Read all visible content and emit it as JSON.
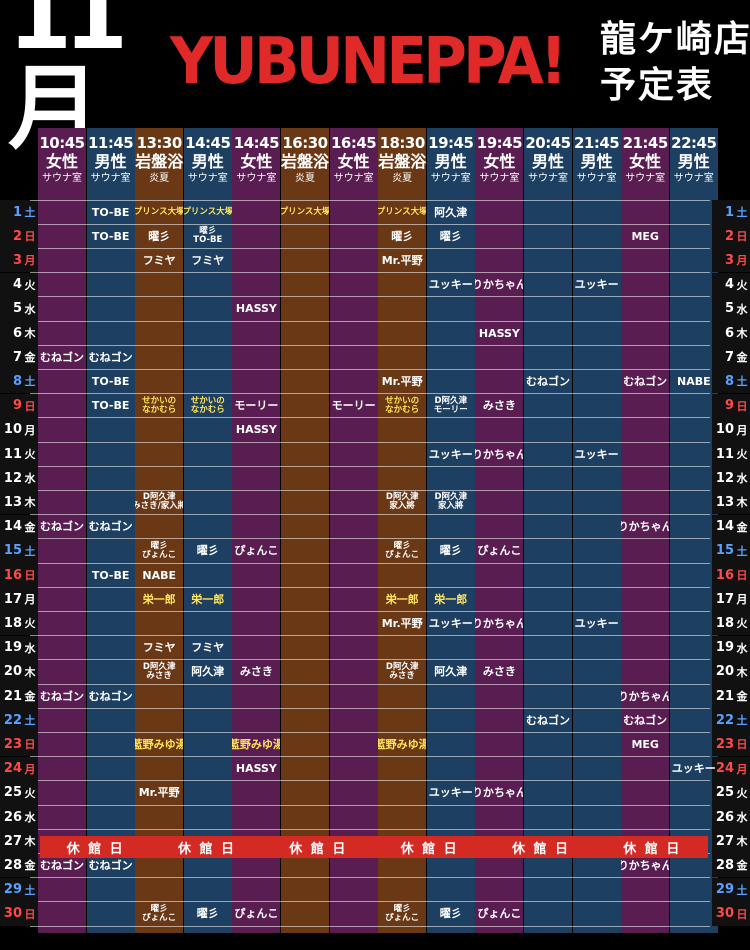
{
  "header": {
    "month": "11月",
    "title": "YUBUNEPPA!",
    "store": "龍ケ崎店",
    "subtitle": "予定表"
  },
  "colors": {
    "bg": "#000000",
    "title_red": "#e02a2a",
    "purple": "#5a1d52",
    "blue": "#1d3f61",
    "brown": "#6b3815",
    "highlight_yellow": "#ffe45c",
    "sat": "#5aa0ff",
    "sun": "#ff4a4a",
    "closed_bar": "#d42a24"
  },
  "columns": [
    {
      "time": "10:45",
      "name": "女性",
      "sub": "サウナ室",
      "color": "purple"
    },
    {
      "time": "11:45",
      "name": "男性",
      "sub": "サウナ室",
      "color": "blue"
    },
    {
      "time": "13:30",
      "name": "岩盤浴",
      "sub": "炎夏",
      "color": "brown"
    },
    {
      "time": "14:45",
      "name": "男性",
      "sub": "サウナ室",
      "color": "blue"
    },
    {
      "time": "14:45",
      "name": "女性",
      "sub": "サウナ室",
      "color": "purple"
    },
    {
      "time": "16:30",
      "name": "岩盤浴",
      "sub": "炎夏",
      "color": "brown"
    },
    {
      "time": "16:45",
      "name": "女性",
      "sub": "サウナ室",
      "color": "purple"
    },
    {
      "time": "18:30",
      "name": "岩盤浴",
      "sub": "炎夏",
      "color": "brown"
    },
    {
      "time": "19:45",
      "name": "男性",
      "sub": "サウナ室",
      "color": "blue"
    },
    {
      "time": "19:45",
      "name": "女性",
      "sub": "サウナ室",
      "color": "purple"
    },
    {
      "time": "20:45",
      "name": "男性",
      "sub": "サウナ室",
      "color": "blue"
    },
    {
      "time": "21:45",
      "name": "男性",
      "sub": "サウナ室",
      "color": "blue"
    },
    {
      "time": "21:45",
      "name": "女性",
      "sub": "サウナ室",
      "color": "purple"
    },
    {
      "time": "22:45",
      "name": "男性",
      "sub": "サウナ室",
      "color": "blue"
    }
  ],
  "days": [
    {
      "d": "1",
      "w": "土",
      "t": "sat",
      "cells": {
        "1": "TO-BE",
        "2": "プリンス大塚",
        "3": "プリンス大塚",
        "5": "プリンス大塚",
        "7": "プリンス大塚",
        "8": "阿久津"
      }
    },
    {
      "d": "2",
      "w": "日",
      "t": "sun",
      "cells": {
        "1": "TO-BE",
        "2": "曜彡",
        "3": "曜彡\nTO-BE",
        "7": "曜彡",
        "8": "曜彡",
        "12": "MEG"
      }
    },
    {
      "d": "3",
      "w": "月",
      "t": "sun",
      "cells": {
        "2": "フミヤ",
        "3": "フミヤ",
        "7": "Mr.平野"
      }
    },
    {
      "d": "4",
      "w": "火",
      "t": "",
      "cells": {
        "8": "ユッキー",
        "9": "りかちゃん",
        "11": "ユッキー"
      }
    },
    {
      "d": "5",
      "w": "水",
      "t": "",
      "cells": {
        "4": "HASSY"
      }
    },
    {
      "d": "6",
      "w": "木",
      "t": "",
      "cells": {
        "9": "HASSY"
      }
    },
    {
      "d": "7",
      "w": "金",
      "t": "",
      "cells": {
        "0": "むねゴン",
        "1": "むねゴン"
      }
    },
    {
      "d": "8",
      "w": "土",
      "t": "sat",
      "cells": {
        "1": "TO-BE",
        "7": "Mr.平野",
        "10": "むねゴン",
        "12": "むねゴン",
        "13": "NABE"
      }
    },
    {
      "d": "9",
      "w": "日",
      "t": "sun",
      "cells": {
        "1": "TO-BE",
        "2": "せかいの\nなかむら",
        "3": "せかいの\nなかむら",
        "4": "モーリー",
        "6": "モーリー",
        "7": "せかいの\nなかむら",
        "8": "D阿久津\nモーリー",
        "9": "みさき"
      }
    },
    {
      "d": "10",
      "w": "月",
      "t": "",
      "cells": {
        "4": "HASSY"
      }
    },
    {
      "d": "11",
      "w": "火",
      "t": "",
      "cells": {
        "8": "ユッキー",
        "9": "りかちゃん",
        "11": "ユッキー"
      }
    },
    {
      "d": "12",
      "w": "水",
      "t": "",
      "cells": {}
    },
    {
      "d": "13",
      "w": "木",
      "t": "",
      "cells": {
        "2": "D阿久津\nみさき/家入將",
        "7": "D阿久津\n家入將",
        "8": "D阿久津\n家入將"
      }
    },
    {
      "d": "14",
      "w": "金",
      "t": "",
      "cells": {
        "0": "むねゴン",
        "1": "むねゴン",
        "12": "りかちゃん"
      }
    },
    {
      "d": "15",
      "w": "土",
      "t": "sat",
      "cells": {
        "2": "曜彡\nぴょんこ",
        "3": "曜彡",
        "4": "ぴょんこ",
        "7": "曜彡\nぴょんこ",
        "8": "曜彡",
        "9": "ぴょんこ"
      }
    },
    {
      "d": "16",
      "w": "日",
      "t": "sun",
      "cells": {
        "1": "TO-BE",
        "2": "NABE"
      }
    },
    {
      "d": "17",
      "w": "月",
      "t": "",
      "cells": {
        "2": "栄一郎",
        "3": "栄一郎",
        "7": "栄一郎",
        "8": "栄一郎"
      }
    },
    {
      "d": "18",
      "w": "火",
      "t": "",
      "cells": {
        "7": "Mr.平野",
        "8": "ユッキー",
        "9": "りかちゃん",
        "11": "ユッキー"
      }
    },
    {
      "d": "19",
      "w": "水",
      "t": "",
      "cells": {
        "2": "フミヤ",
        "3": "フミヤ"
      }
    },
    {
      "d": "20",
      "w": "木",
      "t": "",
      "cells": {
        "2": "D阿久津\nみさき",
        "3": "阿久津",
        "4": "みさき",
        "7": "D阿久津\nみさき",
        "8": "阿久津",
        "9": "みさき"
      }
    },
    {
      "d": "21",
      "w": "金",
      "t": "",
      "cells": {
        "0": "むねゴン",
        "1": "むねゴン",
        "12": "りかちゃん"
      }
    },
    {
      "d": "22",
      "w": "土",
      "t": "sat",
      "cells": {
        "10": "むねゴン",
        "12": "むねゴン"
      }
    },
    {
      "d": "23",
      "w": "日",
      "t": "sun",
      "cells": {
        "2": "藍野みゆ湯",
        "4": "藍野みゆ湯",
        "7": "藍野みゆ湯",
        "12": "MEG"
      }
    },
    {
      "d": "24",
      "w": "月",
      "t": "sun",
      "cells": {
        "4": "HASSY",
        "13": "ユッキー"
      }
    },
    {
      "d": "25",
      "w": "火",
      "t": "",
      "cells": {
        "2": "Mr.平野",
        "8": "ユッキー",
        "9": "りかちゃん"
      }
    },
    {
      "d": "26",
      "w": "水",
      "t": "",
      "cells": {}
    },
    {
      "d": "27",
      "w": "木",
      "t": "",
      "cells": {}
    },
    {
      "d": "28",
      "w": "金",
      "t": "",
      "cells": {
        "0": "むねゴン",
        "1": "むねゴン",
        "12": "りかちゃん"
      }
    },
    {
      "d": "29",
      "w": "土",
      "t": "sat",
      "cells": {}
    },
    {
      "d": "30",
      "w": "日",
      "t": "sun",
      "cells": {
        "2": "曜彡\nぴょんこ",
        "3": "曜彡",
        "4": "ぴょんこ",
        "7": "曜彡\nぴょんこ",
        "8": "曜彡",
        "9": "ぴょんこ"
      }
    }
  ],
  "closed": {
    "day": "27",
    "labels": [
      "休 館 日",
      "休 館 日",
      "休 館 日",
      "休 館 日",
      "休 館 日",
      "休 館 日"
    ]
  },
  "yellow_names": [
    "プリンス大塚",
    "せかいの\nなかむら",
    "栄一郎",
    "藍野みゆ湯"
  ]
}
